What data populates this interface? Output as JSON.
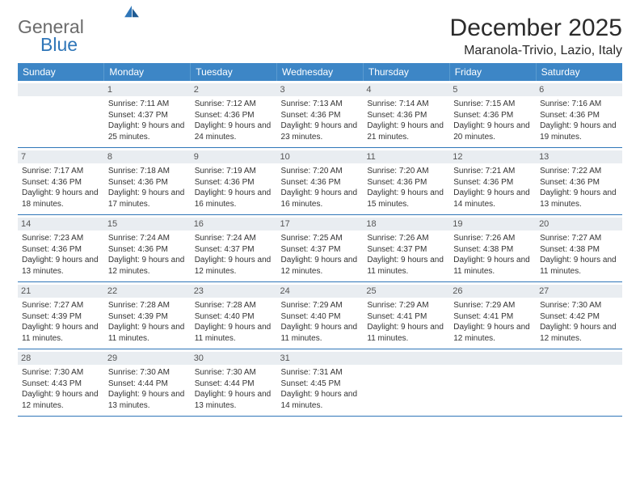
{
  "logo": {
    "line1": "General",
    "line2": "Blue"
  },
  "title": "December 2025",
  "location": "Maranola-Trivio, Lazio, Italy",
  "labels": {
    "sunrise": "Sunrise:",
    "sunset": "Sunset:",
    "daylight": "Daylight:"
  },
  "colors": {
    "header_bg": "#3d86c6",
    "accent": "#2f76b8",
    "daybar": "#e9edf1"
  },
  "weekdays": [
    "Sunday",
    "Monday",
    "Tuesday",
    "Wednesday",
    "Thursday",
    "Friday",
    "Saturday"
  ],
  "weeks": [
    [
      null,
      {
        "n": 1,
        "sr": "7:11 AM",
        "ss": "4:37 PM",
        "dl": "9 hours and 25 minutes."
      },
      {
        "n": 2,
        "sr": "7:12 AM",
        "ss": "4:36 PM",
        "dl": "9 hours and 24 minutes."
      },
      {
        "n": 3,
        "sr": "7:13 AM",
        "ss": "4:36 PM",
        "dl": "9 hours and 23 minutes."
      },
      {
        "n": 4,
        "sr": "7:14 AM",
        "ss": "4:36 PM",
        "dl": "9 hours and 21 minutes."
      },
      {
        "n": 5,
        "sr": "7:15 AM",
        "ss": "4:36 PM",
        "dl": "9 hours and 20 minutes."
      },
      {
        "n": 6,
        "sr": "7:16 AM",
        "ss": "4:36 PM",
        "dl": "9 hours and 19 minutes."
      }
    ],
    [
      {
        "n": 7,
        "sr": "7:17 AM",
        "ss": "4:36 PM",
        "dl": "9 hours and 18 minutes."
      },
      {
        "n": 8,
        "sr": "7:18 AM",
        "ss": "4:36 PM",
        "dl": "9 hours and 17 minutes."
      },
      {
        "n": 9,
        "sr": "7:19 AM",
        "ss": "4:36 PM",
        "dl": "9 hours and 16 minutes."
      },
      {
        "n": 10,
        "sr": "7:20 AM",
        "ss": "4:36 PM",
        "dl": "9 hours and 16 minutes."
      },
      {
        "n": 11,
        "sr": "7:20 AM",
        "ss": "4:36 PM",
        "dl": "9 hours and 15 minutes."
      },
      {
        "n": 12,
        "sr": "7:21 AM",
        "ss": "4:36 PM",
        "dl": "9 hours and 14 minutes."
      },
      {
        "n": 13,
        "sr": "7:22 AM",
        "ss": "4:36 PM",
        "dl": "9 hours and 13 minutes."
      }
    ],
    [
      {
        "n": 14,
        "sr": "7:23 AM",
        "ss": "4:36 PM",
        "dl": "9 hours and 13 minutes."
      },
      {
        "n": 15,
        "sr": "7:24 AM",
        "ss": "4:36 PM",
        "dl": "9 hours and 12 minutes."
      },
      {
        "n": 16,
        "sr": "7:24 AM",
        "ss": "4:37 PM",
        "dl": "9 hours and 12 minutes."
      },
      {
        "n": 17,
        "sr": "7:25 AM",
        "ss": "4:37 PM",
        "dl": "9 hours and 12 minutes."
      },
      {
        "n": 18,
        "sr": "7:26 AM",
        "ss": "4:37 PM",
        "dl": "9 hours and 11 minutes."
      },
      {
        "n": 19,
        "sr": "7:26 AM",
        "ss": "4:38 PM",
        "dl": "9 hours and 11 minutes."
      },
      {
        "n": 20,
        "sr": "7:27 AM",
        "ss": "4:38 PM",
        "dl": "9 hours and 11 minutes."
      }
    ],
    [
      {
        "n": 21,
        "sr": "7:27 AM",
        "ss": "4:39 PM",
        "dl": "9 hours and 11 minutes."
      },
      {
        "n": 22,
        "sr": "7:28 AM",
        "ss": "4:39 PM",
        "dl": "9 hours and 11 minutes."
      },
      {
        "n": 23,
        "sr": "7:28 AM",
        "ss": "4:40 PM",
        "dl": "9 hours and 11 minutes."
      },
      {
        "n": 24,
        "sr": "7:29 AM",
        "ss": "4:40 PM",
        "dl": "9 hours and 11 minutes."
      },
      {
        "n": 25,
        "sr": "7:29 AM",
        "ss": "4:41 PM",
        "dl": "9 hours and 11 minutes."
      },
      {
        "n": 26,
        "sr": "7:29 AM",
        "ss": "4:41 PM",
        "dl": "9 hours and 12 minutes."
      },
      {
        "n": 27,
        "sr": "7:30 AM",
        "ss": "4:42 PM",
        "dl": "9 hours and 12 minutes."
      }
    ],
    [
      {
        "n": 28,
        "sr": "7:30 AM",
        "ss": "4:43 PM",
        "dl": "9 hours and 12 minutes."
      },
      {
        "n": 29,
        "sr": "7:30 AM",
        "ss": "4:44 PM",
        "dl": "9 hours and 13 minutes."
      },
      {
        "n": 30,
        "sr": "7:30 AM",
        "ss": "4:44 PM",
        "dl": "9 hours and 13 minutes."
      },
      {
        "n": 31,
        "sr": "7:31 AM",
        "ss": "4:45 PM",
        "dl": "9 hours and 14 minutes."
      },
      null,
      null,
      null
    ]
  ]
}
